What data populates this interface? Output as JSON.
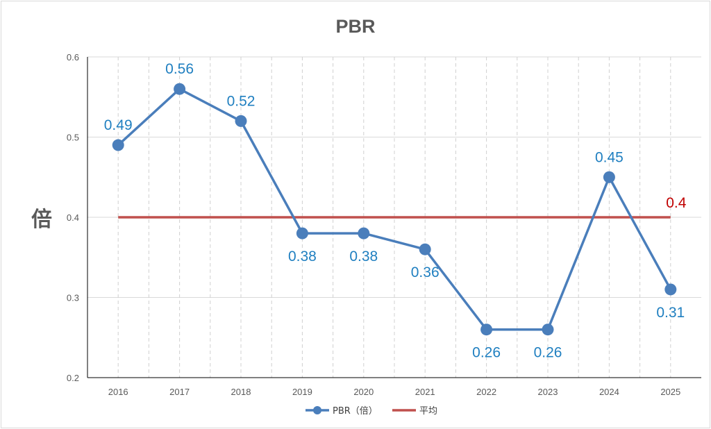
{
  "chart_data": {
    "type": "line",
    "title": "PBR",
    "ylabel": "倍",
    "xlabel": "",
    "categories": [
      "2016",
      "2017",
      "2018",
      "2019",
      "2020",
      "2021",
      "2022",
      "2023",
      "2024",
      "2025"
    ],
    "ylim": [
      0.2,
      0.6
    ],
    "yticks": [
      "0.2",
      "0.3",
      "0.4",
      "0.5",
      "0.6"
    ],
    "grid": "vertical dashed",
    "legend_position": "bottom",
    "series": [
      {
        "name": "PBR（倍）",
        "values": [
          0.49,
          0.56,
          0.52,
          0.38,
          0.38,
          0.36,
          0.26,
          0.26,
          0.45,
          0.31
        ],
        "labels": [
          "0.49",
          "0.56",
          "0.52",
          "0.38",
          "0.38",
          "0.36",
          "0.26",
          "0.26",
          "0.45",
          "0.31"
        ],
        "color": "#4a7ebb",
        "label_color": "#1f7fc0"
      },
      {
        "name": "平均",
        "values": [
          0.4,
          0.4,
          0.4,
          0.4,
          0.4,
          0.4,
          0.4,
          0.4,
          0.4,
          0.4
        ],
        "end_label": "0.4",
        "color": "#c0504d",
        "label_color": "#c00000"
      }
    ]
  }
}
